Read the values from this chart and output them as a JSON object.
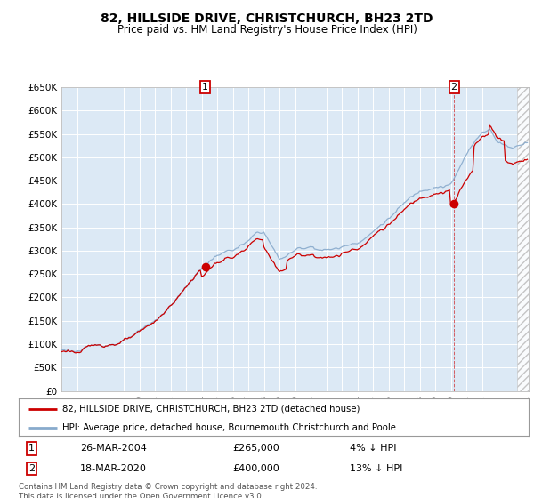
{
  "title": "82, HILLSIDE DRIVE, CHRISTCHURCH, BH23 2TD",
  "subtitle": "Price paid vs. HM Land Registry's House Price Index (HPI)",
  "legend_label_red": "82, HILLSIDE DRIVE, CHRISTCHURCH, BH23 2TD (detached house)",
  "legend_label_blue": "HPI: Average price, detached house, Bournemouth Christchurch and Poole",
  "annotation1_date": "26-MAR-2004",
  "annotation1_price": "£265,000",
  "annotation1_hpi": "4% ↓ HPI",
  "annotation2_date": "18-MAR-2020",
  "annotation2_price": "£400,000",
  "annotation2_hpi": "13% ↓ HPI",
  "footer": "Contains HM Land Registry data © Crown copyright and database right 2024.\nThis data is licensed under the Open Government Licence v3.0.",
  "bg_color": "#dce9f5",
  "grid_color": "#ffffff",
  "red_color": "#cc0000",
  "blue_color": "#88aacc",
  "ylim": [
    0,
    650000
  ],
  "yticks": [
    0,
    50000,
    100000,
    150000,
    200000,
    250000,
    300000,
    350000,
    400000,
    450000,
    500000,
    550000,
    600000,
    650000
  ],
  "xmin": 1995,
  "xmax": 2025,
  "purchase1_year": 2004.23,
  "purchase1_value": 265000,
  "purchase2_year": 2020.21,
  "purchase2_value": 400000,
  "hatch_start_year": 2024.25
}
